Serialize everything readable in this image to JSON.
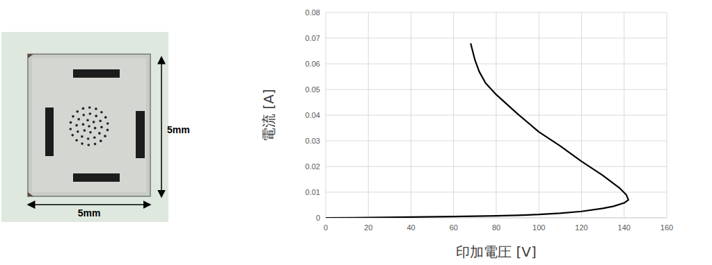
{
  "photo": {
    "width_label": "5mm",
    "height_label": "5mm"
  },
  "chart_data": {
    "type": "line",
    "x_label": "印加電圧 [V]",
    "y_label": "電流 [A]",
    "x": [
      0,
      20,
      40,
      60,
      80,
      90,
      100,
      110,
      120,
      130,
      135,
      140,
      142,
      141,
      138,
      130,
      120,
      110,
      100,
      90,
      80,
      75,
      72,
      70,
      68
    ],
    "values": [
      0,
      0.0001,
      0.0003,
      0.0005,
      0.0008,
      0.001,
      0.0013,
      0.0018,
      0.0025,
      0.0037,
      0.0045,
      0.0058,
      0.007,
      0.009,
      0.0115,
      0.0165,
      0.022,
      0.028,
      0.0335,
      0.0405,
      0.048,
      0.0525,
      0.057,
      0.0615,
      0.068
    ],
    "color": "#000000",
    "xlim": [
      0,
      160
    ],
    "xticks": [
      0,
      20,
      40,
      60,
      80,
      100,
      120,
      140,
      160
    ],
    "ylim": [
      0,
      0.08
    ],
    "yticks": [
      0,
      0.01,
      0.02,
      0.03,
      0.04,
      0.05,
      0.06,
      0.07,
      0.08
    ],
    "grid": true
  }
}
